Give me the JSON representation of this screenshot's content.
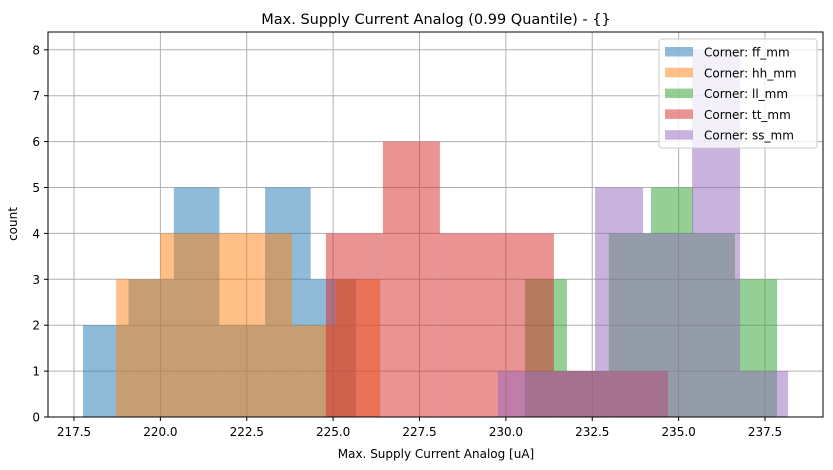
{
  "chart_data": {
    "type": "bar",
    "subtype": "overlapping-histogram",
    "title": "Max. Supply Current Analog (0.99 Quantile) - {}",
    "xlabel": "Max. Supply Current Analog [uA]",
    "ylabel": "count",
    "xlim": [
      216.73,
      239.16
    ],
    "ylim": [
      0,
      8.4
    ],
    "xticks": [
      217.5,
      220.0,
      222.5,
      225.0,
      227.5,
      230.0,
      232.5,
      235.0,
      237.5
    ],
    "xtick_labels": [
      "217.5",
      "220.0",
      "222.5",
      "225.0",
      "227.5",
      "230.0",
      "232.5",
      "235.0",
      "237.5"
    ],
    "yticks": [
      0,
      1,
      2,
      3,
      4,
      5,
      6,
      7,
      8
    ],
    "ytick_labels": [
      "0",
      "1",
      "2",
      "3",
      "4",
      "5",
      "6",
      "7",
      "8"
    ],
    "grid": true,
    "legend_position": "upper right",
    "alpha": 0.5,
    "series": [
      {
        "name": "Corner: ff_mm",
        "color": "#1f77b4",
        "bin_edges": [
          217.76,
          219.08,
          220.39,
          221.71,
          223.03,
          224.35,
          225.66
        ],
        "counts": [
          2,
          3,
          5,
          2,
          5,
          3
        ]
      },
      {
        "name": "Corner: hh_mm",
        "color": "#ff7f0e",
        "bin_edges": [
          218.72,
          219.99,
          221.26,
          222.54,
          223.81,
          225.08,
          226.36
        ],
        "counts": [
          3,
          4,
          4,
          4,
          2,
          3
        ]
      },
      {
        "name": "Corner: ll_mm",
        "color": "#2ca02c",
        "bin_edges": [
          230.55,
          231.77,
          232.98,
          234.2,
          235.42,
          236.63,
          237.85
        ],
        "counts": [
          3,
          1,
          4,
          5,
          4,
          3
        ]
      },
      {
        "name": "Corner: tt_mm",
        "color": "#d62728",
        "bin_edges": [
          224.79,
          226.44,
          228.09,
          229.74,
          231.39,
          233.04,
          234.69
        ],
        "counts": [
          4,
          6,
          4,
          4,
          1,
          1
        ]
      },
      {
        "name": "Corner: ss_mm",
        "color": "#9467bd",
        "bin_edges": [
          229.77,
          231.16,
          232.58,
          233.97,
          235.39,
          236.78,
          238.17
        ],
        "counts": [
          1,
          1,
          5,
          4,
          8,
          1
        ]
      }
    ]
  },
  "legend": {
    "items": [
      {
        "label": "Corner: ff_mm",
        "color": "#1f77b4"
      },
      {
        "label": "Corner: hh_mm",
        "color": "#ff7f0e"
      },
      {
        "label": "Corner: ll_mm",
        "color": "#2ca02c"
      },
      {
        "label": "Corner: tt_mm",
        "color": "#d62728"
      },
      {
        "label": "Corner: ss_mm",
        "color": "#9467bd"
      }
    ]
  }
}
